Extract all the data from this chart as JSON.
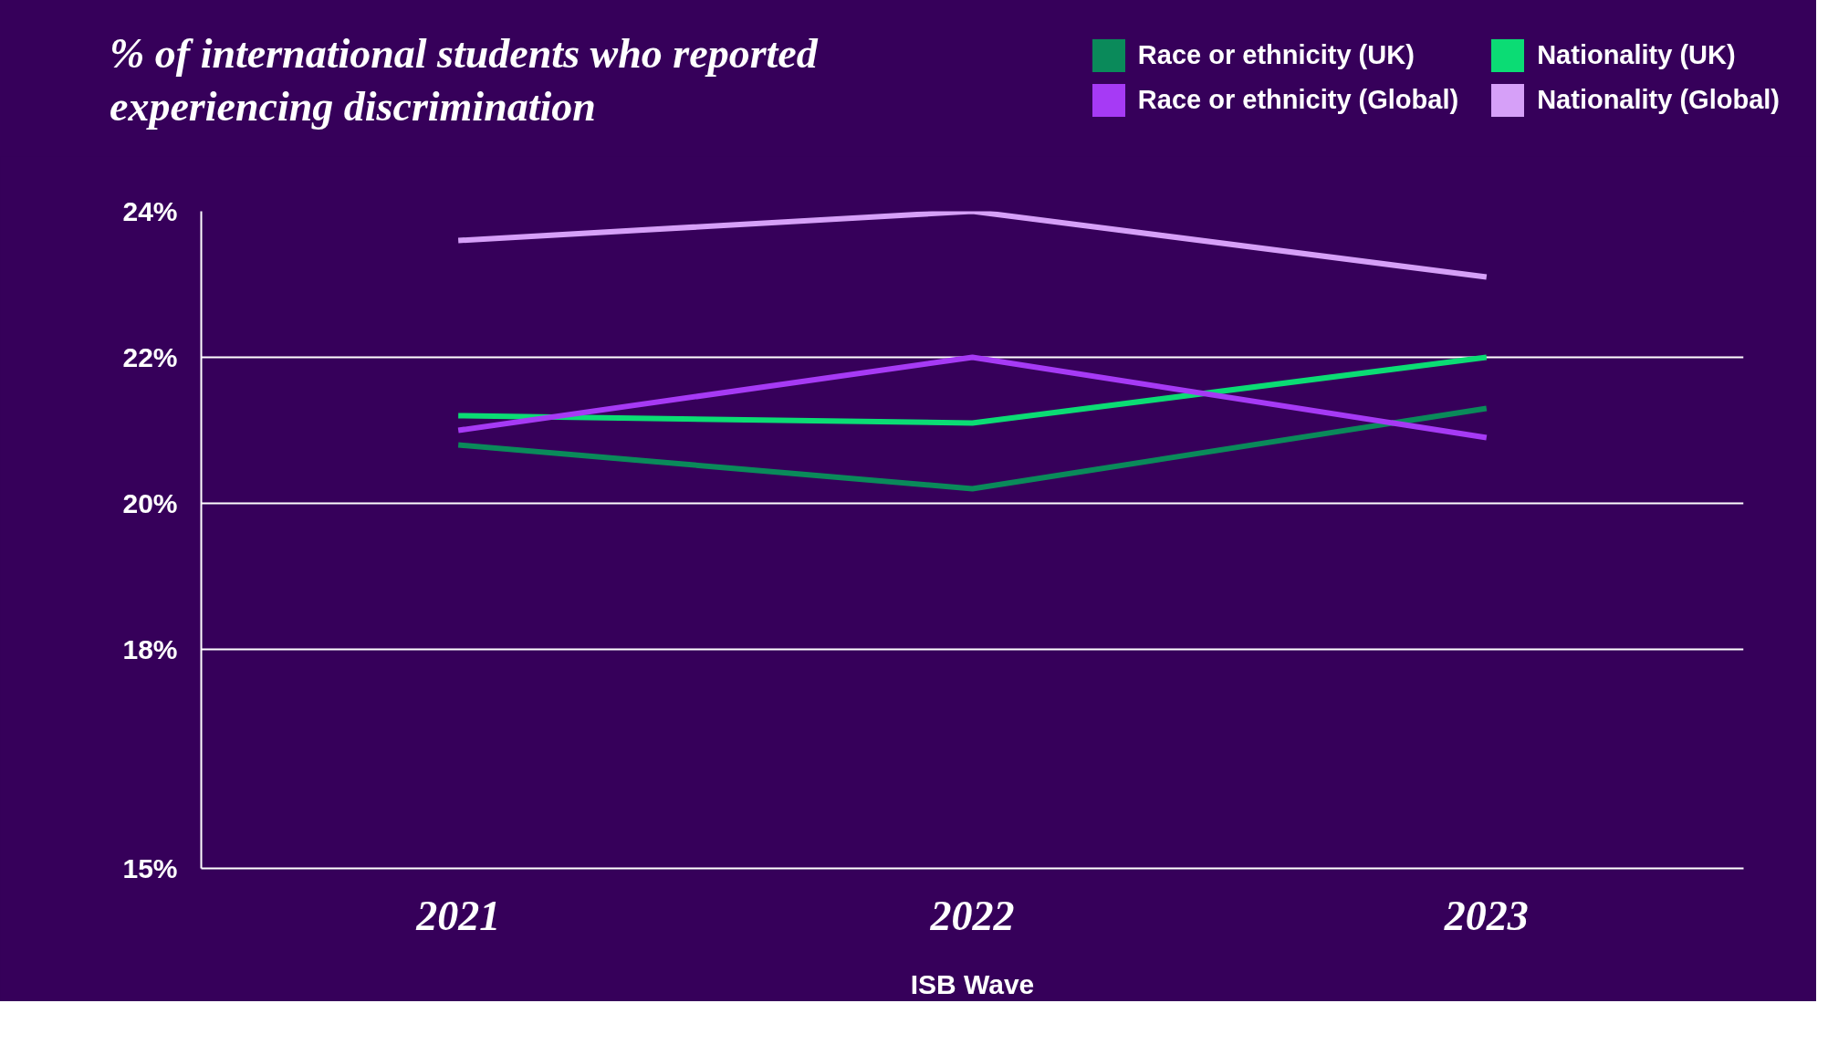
{
  "chart_data": {
    "type": "line",
    "title": "% of international students who reported experiencing discrimination",
    "xlabel": "ISB Wave",
    "categories": [
      "2021",
      "2022",
      "2023"
    ],
    "series": [
      {
        "name": "Race or ethnicity (UK)",
        "color": "#0a8a5a",
        "values": [
          20.8,
          20.2,
          21.3
        ]
      },
      {
        "name": "Nationality (UK)",
        "color": "#0bdc74",
        "values": [
          21.2,
          21.1,
          22.0
        ]
      },
      {
        "name": "Race or ethnicity (Global)",
        "color": "#a63af5",
        "values": [
          21.0,
          22.0,
          20.9
        ]
      },
      {
        "name": "Nationality (Global)",
        "color": "#d6a0f8",
        "values": [
          23.6,
          24.0,
          23.1
        ]
      }
    ],
    "ylim": [
      15,
      24
    ],
    "yticks": [
      {
        "value": 15,
        "label": "15%"
      },
      {
        "value": 18,
        "label": "18%"
      },
      {
        "value": 20,
        "label": "20%"
      },
      {
        "value": 22,
        "label": "22%"
      },
      {
        "value": 24,
        "label": "24%"
      }
    ],
    "grid": "y",
    "legend": "top right"
  }
}
